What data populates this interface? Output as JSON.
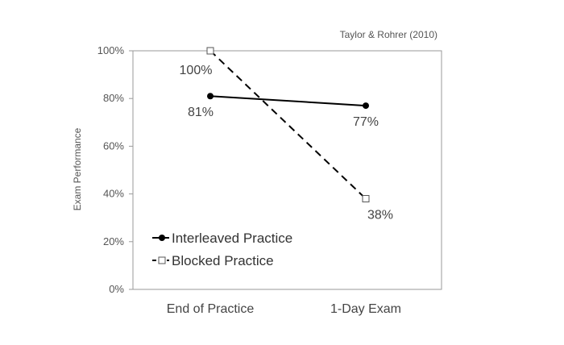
{
  "citation": "Taylor & Rohrer (2010)",
  "chart_data": {
    "type": "line",
    "categories": [
      "End of Practice",
      "1-Day Exam"
    ],
    "ylabel": "Exam Performance",
    "ylim": [
      0,
      100
    ],
    "y_ticks": [
      0,
      20,
      40,
      60,
      80,
      100
    ],
    "y_tick_labels": [
      "0%",
      "20%",
      "40%",
      "60%",
      "80%",
      "100%"
    ],
    "grid": false,
    "legend_position": "bottom-left",
    "series": [
      {
        "name": "Interleaved Practice",
        "values": [
          81,
          77
        ],
        "labels": [
          "81%",
          "77%"
        ],
        "color": "#000000",
        "line_style": "solid",
        "marker": "filled-circle"
      },
      {
        "name": "Blocked Practice",
        "values": [
          100,
          38
        ],
        "labels": [
          "100%",
          "38%"
        ],
        "color": "#000000",
        "line_style": "dashed",
        "marker": "open-square"
      }
    ]
  }
}
